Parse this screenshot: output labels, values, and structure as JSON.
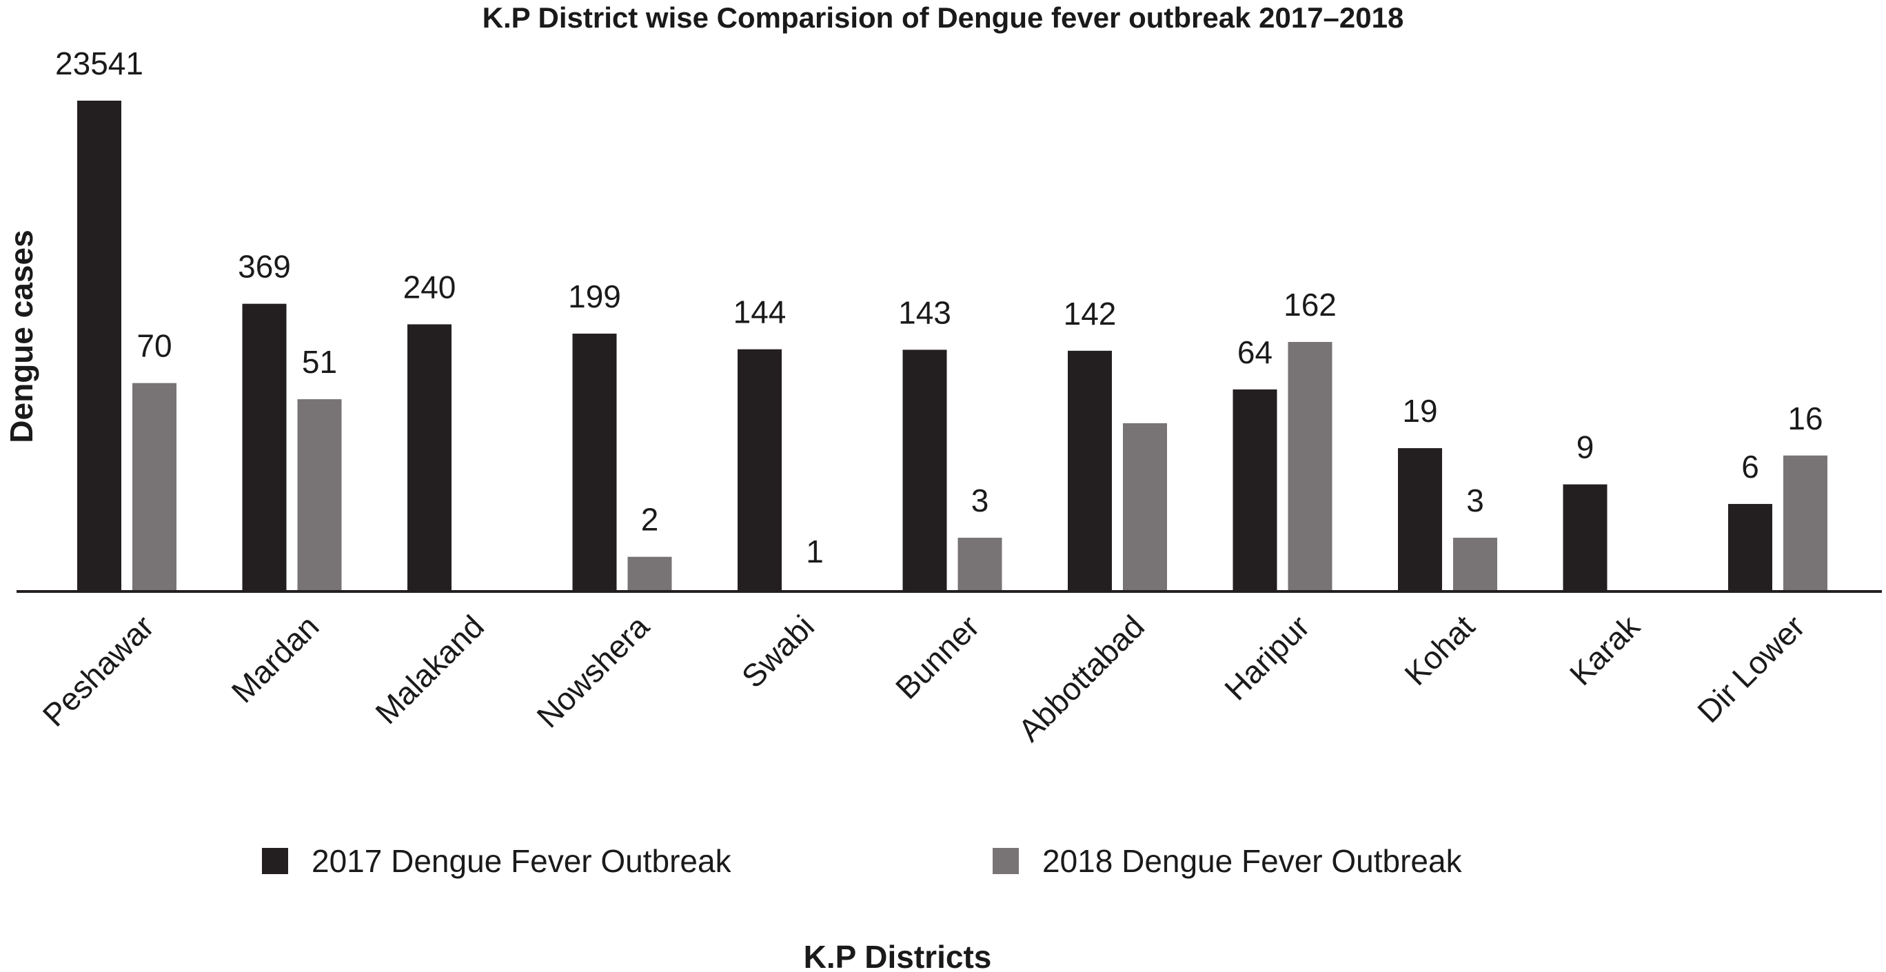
{
  "chart_data": {
    "type": "bar",
    "title": "K.P District wise Comparision of Dengue fever outbreak 2017–2018",
    "xlabel": "K.P Districts",
    "ylabel": "Dengue cases",
    "categories": [
      "Peshawar",
      "Mardan",
      "Malakand",
      "Nowshera",
      "Swabi",
      "Bunner",
      "Abbottabad",
      "Haripur",
      "Kohat",
      "Karak",
      "Dir Lower"
    ],
    "series": [
      {
        "name": "2017 Dengue Fever Outbreak",
        "color": "#231f20",
        "values": [
          23541,
          369,
          240,
          199,
          144,
          143,
          142,
          64,
          19,
          9,
          6
        ],
        "labels": [
          "23541",
          "369",
          "240",
          "199",
          "144",
          "143",
          "142",
          "64",
          "19",
          "9",
          "6"
        ],
        "bar_fraction": [
          1.0,
          0.585,
          0.543,
          0.524,
          0.492,
          0.491,
          0.489,
          0.41,
          0.29,
          0.216,
          0.176
        ]
      },
      {
        "name": "2018 Dengue Fever Outbreak",
        "color": "#787475",
        "values": [
          70,
          51,
          null,
          2,
          1,
          3,
          null,
          162,
          3,
          null,
          16
        ],
        "labels": [
          "70",
          "51",
          "",
          "2",
          "1",
          "3",
          "",
          "162",
          "3",
          "",
          "16"
        ],
        "bar_fraction": [
          0.423,
          0.39,
          null,
          0.068,
          0.0,
          0.107,
          0.341,
          0.507,
          0.107,
          null,
          0.275
        ]
      }
    ],
    "axis": "non-linear scale (bar heights not proportional to values)",
    "grid": false,
    "legend_position": "bottom"
  }
}
